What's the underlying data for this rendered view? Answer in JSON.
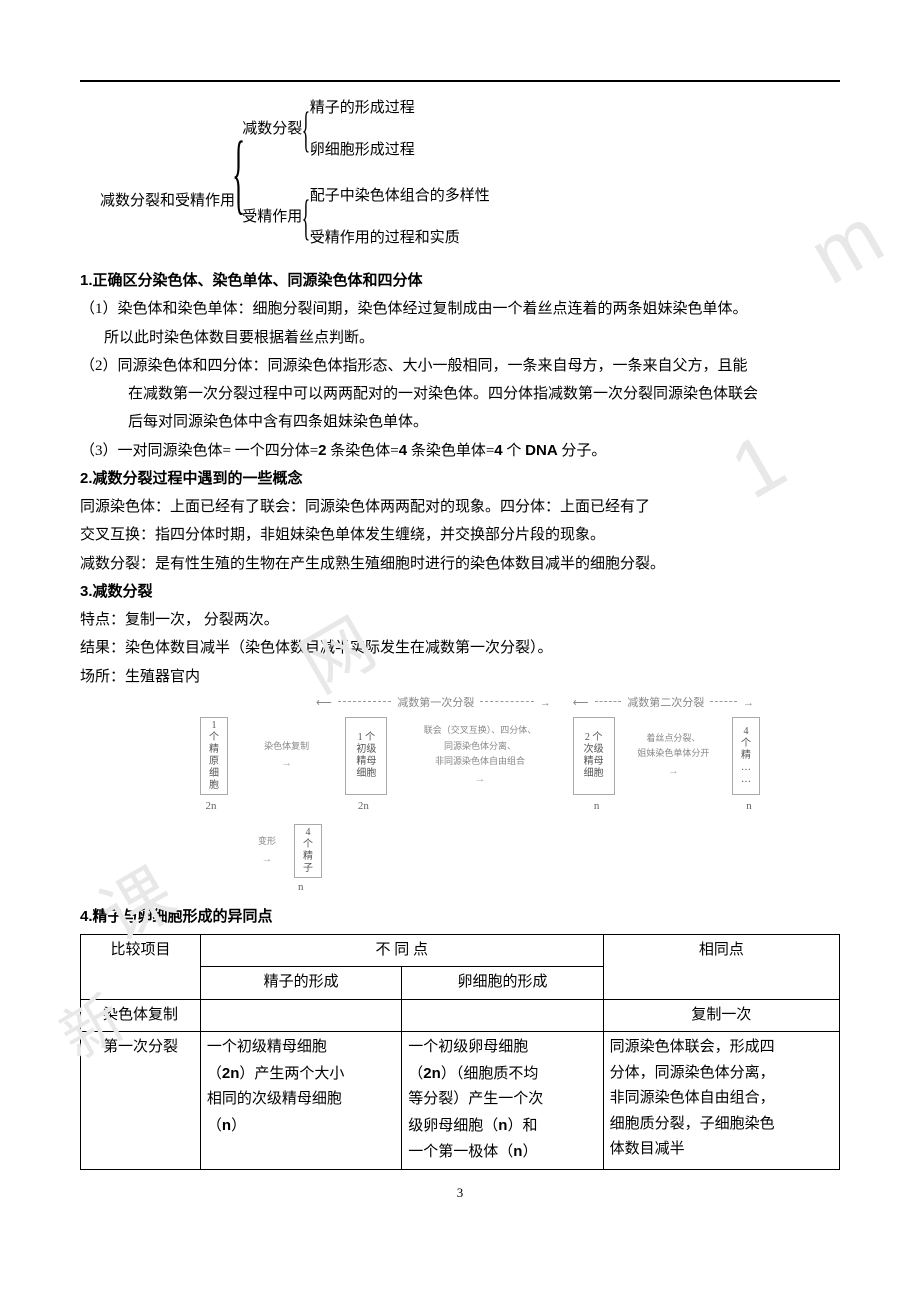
{
  "colors": {
    "text": "#000000",
    "background": "#ffffff",
    "border": "#000000",
    "diagram_border": "#aaaaaa",
    "diagram_text": "#888888",
    "watermark": "#e8e8e8"
  },
  "fonts": {
    "body_family": "SimSun",
    "body_size_pt": 11,
    "heading_family": "SimHei"
  },
  "page_number": "3",
  "tree": {
    "root": "减数分裂和受精作用",
    "branch1": {
      "label": "减数分裂",
      "leaf1": "精子的形成过程",
      "leaf2": "卵细胞形成过程"
    },
    "branch2": {
      "label": "受精作用",
      "leaf1": "配子中染色体组合的多样性",
      "leaf2": "受精作用的过程和实质"
    }
  },
  "section1": {
    "heading": "1.正确区分染色体、染色单体、同源染色体和四分体",
    "p1a": "（1）染色体和染色单体：细胞分裂间期，染色体经过复制成由一个着丝点连着的两条姐妹染色单体。",
    "p1b": "所以此时染色体数目要根据着丝点判断。",
    "p2a": "（2）同源染色体和四分体：同源染色体指形态、大小一般相同，一条来自母方，一条来自父方，且能",
    "p2b": "在减数第一次分裂过程中可以两两配对的一对染色体。四分体指减数第一次分裂同源染色体联会",
    "p2c": "后每对同源染色体中含有四条姐妹染色单体。",
    "p3_pre": "（3）一对同源染色体= 一个四分体=",
    "p3_b1": "2",
    "p3_mid1": " 条染色体=",
    "p3_b2": "4",
    "p3_mid2": " 条染色单体=",
    "p3_b3": "4",
    "p3_mid3": " 个 ",
    "p3_b4": "DNA",
    "p3_end": " 分子。"
  },
  "section2": {
    "heading": "2.减数分裂过程中遇到的一些概念",
    "p1": "同源染色体：上面已经有了联会：同源染色体两两配对的现象。四分体：上面已经有了",
    "p2": "交叉互换：指四分体时期，非姐妹染色单体发生缠绕，并交换部分片段的现象。",
    "p3": "减数分裂：是有性生殖的生物在产生成熟生殖细胞时进行的染色体数目减半的细胞分裂。"
  },
  "section3": {
    "heading": "3.减数分裂",
    "p1": "特点：复制一次，  分裂两次。",
    "p2": "结果：染色体数目减半（染色体数目减半实际发生在减数第一次分裂）。",
    "p3": "场所：生殖器官内"
  },
  "diagram": {
    "header_left": "减数第一次分裂",
    "header_right": "减数第二次分裂",
    "box1": "1\n个\n精\n原\n细\n胞",
    "arrow1": "染色体复制",
    "box2": "1 个\n初级\n精母\n细胞",
    "arrow2": "联会（交叉互换）、四分体、\n同源染色体分离、\n非同源染色体自由组合",
    "box3": "2 个\n次级\n精母\n细胞",
    "arrow3": "着丝点分裂、\n姐妹染色单体分开",
    "box4": "4\n个\n精\n…\n…",
    "ploidy": {
      "p1": "2n",
      "p2": "2n",
      "p3": "n",
      "p4": "n"
    },
    "arrow_transform": "变形",
    "box5": "4\n个\n精\n子",
    "ploidy5": "n"
  },
  "section4": {
    "heading": "4.精子与卵细胞形成的异同点"
  },
  "table": {
    "headers": {
      "col1": "比较项目",
      "col2": "不  同  点",
      "col3": "相同点",
      "sub1": "精子的形成",
      "sub2": "卵细胞的形成"
    },
    "rows": {
      "r1": {
        "label": "染色体复制",
        "sperm": "",
        "egg": "",
        "same": "复制一次"
      },
      "r2": {
        "label": "第一次分裂",
        "sperm_l1": "一个初级精母细胞",
        "sperm_l2_pre": "（",
        "sperm_l2_b": "2n",
        "sperm_l2_post": "）产生两个大小",
        "sperm_l3": "相同的次级精母细胞",
        "sperm_l4_pre": "（",
        "sperm_l4_b": "n",
        "sperm_l4_post": "）",
        "egg_l1": "一个初级卵母细胞",
        "egg_l2_pre": "（",
        "egg_l2_b": "2n",
        "egg_l2_post": "）（细胞质不均",
        "egg_l3": "等分裂）产生一个次",
        "egg_l4_pre": "级卵母细胞（",
        "egg_l4_b": "n",
        "egg_l4_post": "）和",
        "egg_l5_pre": "一个第一极体（",
        "egg_l5_b": "n",
        "egg_l5_post": "）",
        "same_l1": "同源染色体联会，形成四",
        "same_l2": "分体，同源染色体分离，",
        "same_l3": "非同源染色体自由组合，",
        "same_l4": "细胞质分裂，子细胞染色",
        "same_l5": "体数目减半"
      }
    }
  }
}
